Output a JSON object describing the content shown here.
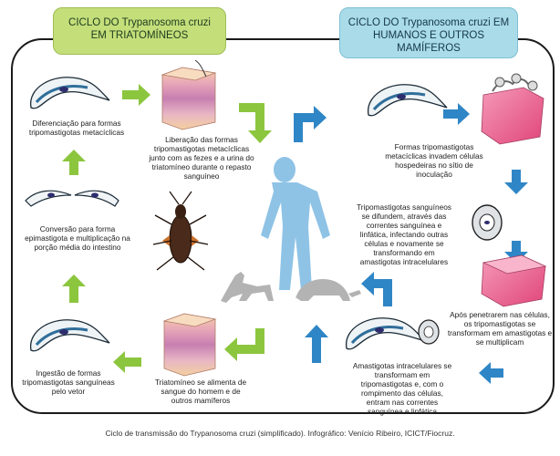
{
  "header_left": {
    "line1": "CICLO DO Trypanosoma cruzi",
    "line2": "EM TRIATOMÍNEOS"
  },
  "header_right": {
    "line1": "CICLO DO Trypanosoma cruzi EM",
    "line2": "HUMANOS E OUTROS MAMÍFEROS"
  },
  "labels": {
    "diferenciacao": "Diferenciação para formas tripomastigotas metacíclicas",
    "liberacao": "Liberação das formas tripomastigotas metacíclicas junto com as fezes e a urina do triatomíneo durante o repasto sanguíneo",
    "conversao": "Conversão para forma epimastigota e multiplicação na porção média do intestino",
    "ingestao": "Ingestão de formas tripomastigotas sanguíneas pelo vetor",
    "triatomineo": "Triatomíneo se alimenta de sangue do homem e de outros mamíferos",
    "invadem": "Formas tripomastigotas metacíclicas invadem células hospedeiras no sítio de inoculação",
    "difundem": "Tripomastigotas sanguíneos se difundem, através das correntes sanguínea e linfática, infectando outras células e novamente se transformando em amastigotas intracelulares",
    "penetrarem": "Após penetrarem nas células, os tripomastigotas se transformam em amastigotas e se multiplicam",
    "amastigotas": "Amastigotas intracelulares se transformam em tripomastigotas e, com o rompimento das células, entram nas correntes sanguínea e linfática"
  },
  "caption": "Ciclo de transmissão do Trypanosoma cruzi (simplificado). Infográfico: Venício Ribeiro, ICICT/Fiocruz.",
  "colors": {
    "green_arrow": "#8cc63f",
    "blue_arrow": "#2f86c6",
    "human": "#8fc3e6",
    "animal": "#b3b3b3"
  }
}
